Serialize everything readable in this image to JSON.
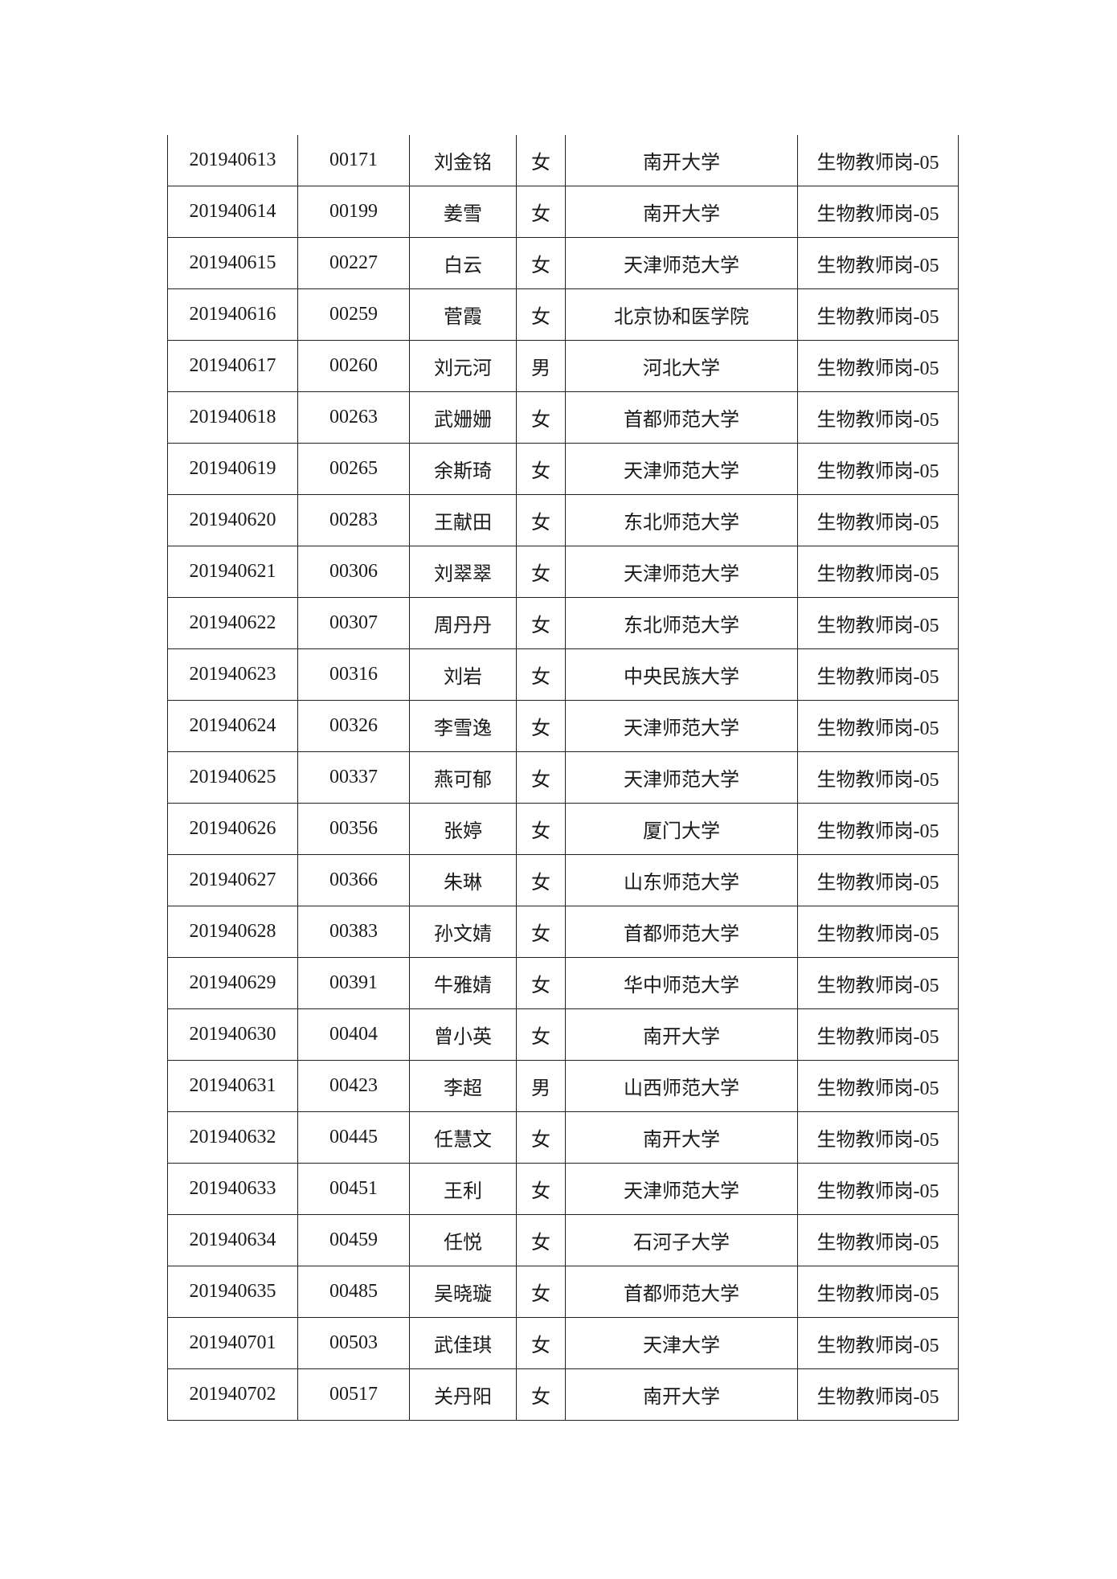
{
  "table": {
    "rows": [
      [
        "201940613",
        "00171",
        "刘金铭",
        "女",
        "南开大学",
        "生物教师岗-05"
      ],
      [
        "201940614",
        "00199",
        "姜雪",
        "女",
        "南开大学",
        "生物教师岗-05"
      ],
      [
        "201940615",
        "00227",
        "白云",
        "女",
        "天津师范大学",
        "生物教师岗-05"
      ],
      [
        "201940616",
        "00259",
        "菅霞",
        "女",
        "北京协和医学院",
        "生物教师岗-05"
      ],
      [
        "201940617",
        "00260",
        "刘元河",
        "男",
        "河北大学",
        "生物教师岗-05"
      ],
      [
        "201940618",
        "00263",
        "武姗姗",
        "女",
        "首都师范大学",
        "生物教师岗-05"
      ],
      [
        "201940619",
        "00265",
        "余斯琦",
        "女",
        "天津师范大学",
        "生物教师岗-05"
      ],
      [
        "201940620",
        "00283",
        "王献田",
        "女",
        "东北师范大学",
        "生物教师岗-05"
      ],
      [
        "201940621",
        "00306",
        "刘翠翠",
        "女",
        "天津师范大学",
        "生物教师岗-05"
      ],
      [
        "201940622",
        "00307",
        "周丹丹",
        "女",
        "东北师范大学",
        "生物教师岗-05"
      ],
      [
        "201940623",
        "00316",
        "刘岩",
        "女",
        "中央民族大学",
        "生物教师岗-05"
      ],
      [
        "201940624",
        "00326",
        "李雪逸",
        "女",
        "天津师范大学",
        "生物教师岗-05"
      ],
      [
        "201940625",
        "00337",
        "燕可郁",
        "女",
        "天津师范大学",
        "生物教师岗-05"
      ],
      [
        "201940626",
        "00356",
        "张婷",
        "女",
        "厦门大学",
        "生物教师岗-05"
      ],
      [
        "201940627",
        "00366",
        "朱琳",
        "女",
        "山东师范大学",
        "生物教师岗-05"
      ],
      [
        "201940628",
        "00383",
        "孙文婧",
        "女",
        "首都师范大学",
        "生物教师岗-05"
      ],
      [
        "201940629",
        "00391",
        "牛雅婧",
        "女",
        "华中师范大学",
        "生物教师岗-05"
      ],
      [
        "201940630",
        "00404",
        "曾小英",
        "女",
        "南开大学",
        "生物教师岗-05"
      ],
      [
        "201940631",
        "00423",
        "李超",
        "男",
        "山西师范大学",
        "生物教师岗-05"
      ],
      [
        "201940632",
        "00445",
        "任慧文",
        "女",
        "南开大学",
        "生物教师岗-05"
      ],
      [
        "201940633",
        "00451",
        "王利",
        "女",
        "天津师范大学",
        "生物教师岗-05"
      ],
      [
        "201940634",
        "00459",
        "任悦",
        "女",
        "石河子大学",
        "生物教师岗-05"
      ],
      [
        "201940635",
        "00485",
        "吴晓璇",
        "女",
        "首都师范大学",
        "生物教师岗-05"
      ],
      [
        "201940701",
        "00503",
        "武佳琪",
        "女",
        "天津大学",
        "生物教师岗-05"
      ],
      [
        "201940702",
        "00517",
        "关丹阳",
        "女",
        "南开大学",
        "生物教师岗-05"
      ]
    ]
  }
}
